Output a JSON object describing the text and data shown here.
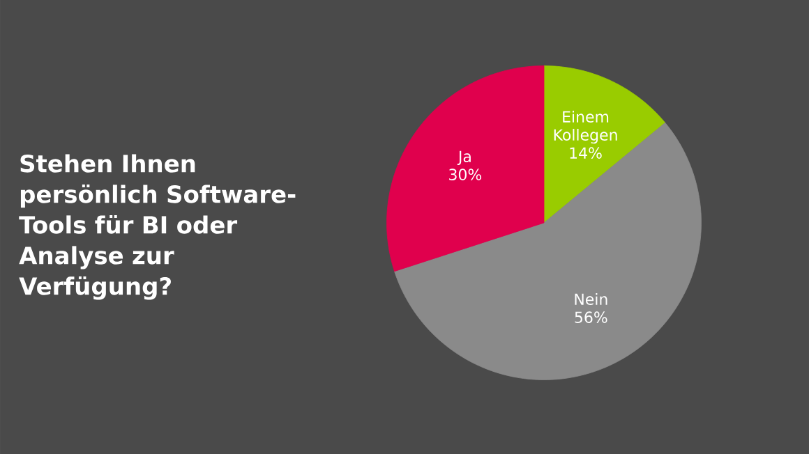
{
  "chart_data": {
    "type": "pie",
    "title": "Stehen Ihnen persönlich Software-Tools für BI oder Analyse zur Verfügung?",
    "categories": [
      "Einem Kollegen",
      "Nein",
      "Ja"
    ],
    "values": [
      14,
      56,
      30
    ],
    "value_labels": [
      "14%",
      "56%",
      "30%"
    ],
    "colors": [
      "#99cc00",
      "#8a8a8a",
      "#e0004d"
    ]
  }
}
